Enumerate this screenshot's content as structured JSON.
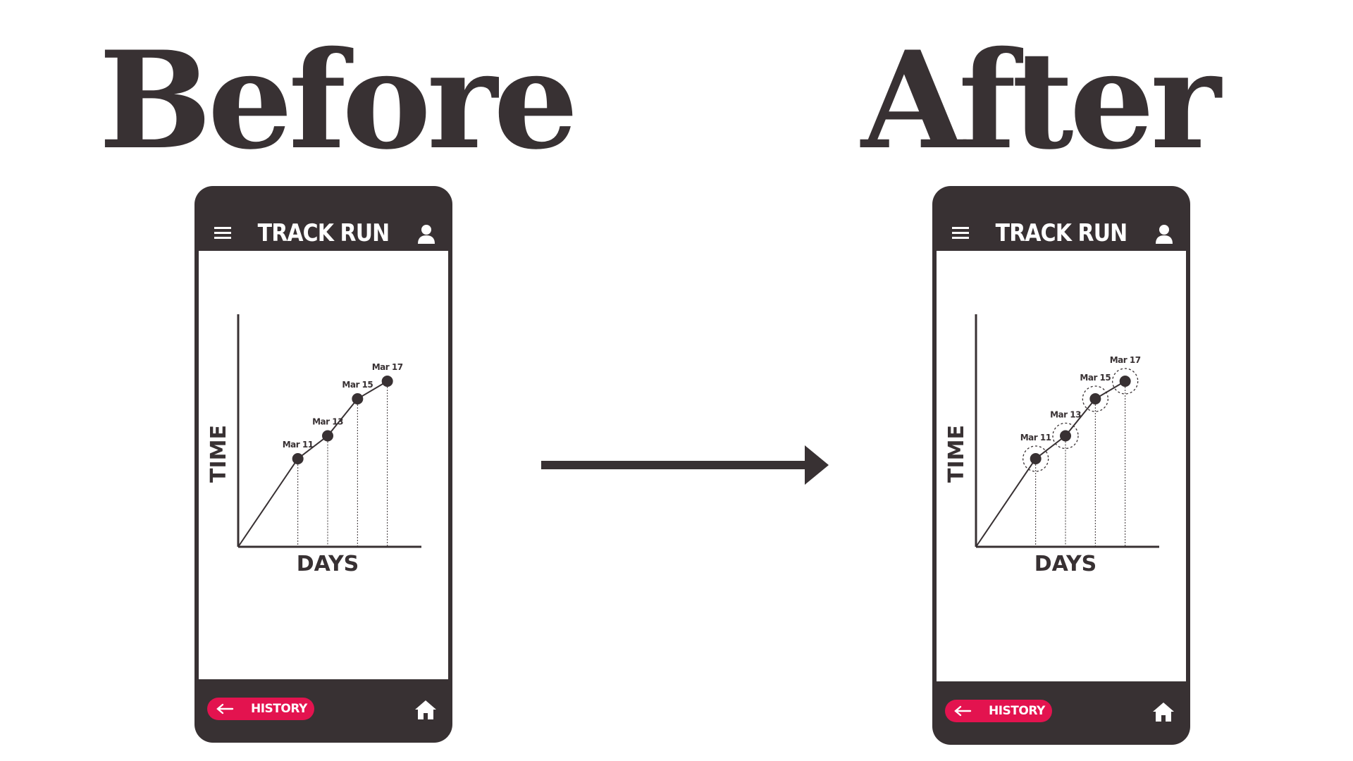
{
  "headings": {
    "before": "Before",
    "after": "After"
  },
  "app": {
    "title": "TRACK RUN",
    "history_label": "HISTORY"
  },
  "colors": {
    "dark": "#383133",
    "accent": "#e3134f",
    "background": "#ffffff"
  },
  "icons": [
    "menu-icon",
    "user-icon",
    "arrow-left-icon",
    "home-icon",
    "right-arrow-icon"
  ],
  "chart_data": [
    {
      "type": "line",
      "xlabel": "DAYS",
      "ylabel": "TIME",
      "categories": [
        "Mar 11",
        "Mar 13",
        "Mar 15",
        "Mar 17"
      ],
      "x": [
        11,
        13,
        15,
        17
      ],
      "values": [
        50,
        63,
        84,
        94
      ],
      "xlim": [
        7,
        19
      ],
      "ylim": [
        0,
        120
      ],
      "starts_at_origin": true,
      "drop_lines": true,
      "highlighted_points": false,
      "grid": false
    },
    {
      "type": "line",
      "xlabel": "DAYS",
      "ylabel": "TIME",
      "categories": [
        "Mar 11",
        "Mar 13",
        "Mar 15",
        "Mar 17"
      ],
      "x": [
        11,
        13,
        15,
        17
      ],
      "values": [
        50,
        63,
        84,
        94
      ],
      "xlim": [
        7,
        19
      ],
      "ylim": [
        0,
        120
      ],
      "starts_at_origin": true,
      "drop_lines": true,
      "highlighted_points": true,
      "grid": false
    }
  ]
}
